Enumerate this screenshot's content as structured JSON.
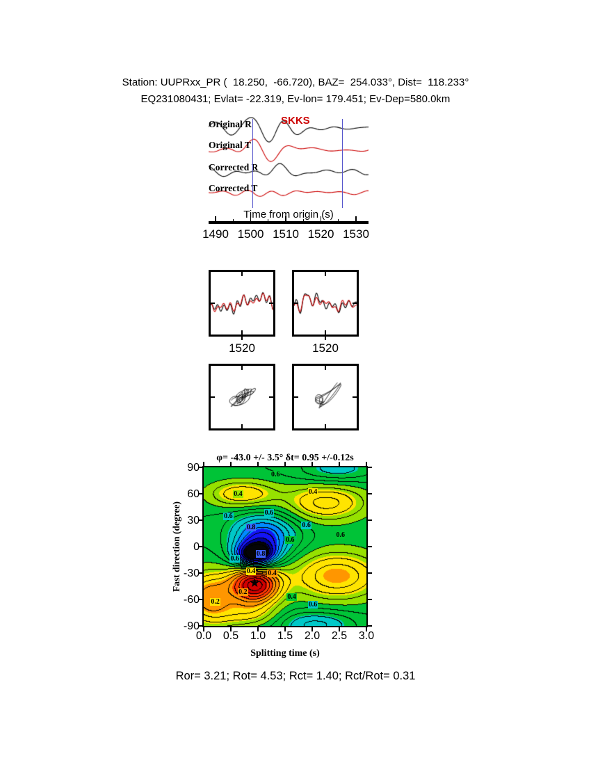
{
  "header": {
    "line1": "Station: UUPRxx_PR (  18.250,  -66.720), BAZ=  254.033°, Dist=  118.233°",
    "line2": "EQ231080431; Evlat= -22.319, Ev-lon= 179.451; Ev-Dep=580.0km"
  },
  "seismograms": {
    "phase_label": "SKKS",
    "trace_labels": [
      "Original R",
      "Original T",
      "Corrected R",
      "Corrected T"
    ],
    "axis_label": "Time from origin (s)",
    "xticks": [
      "1490",
      "1500",
      "1510",
      "1520",
      "1530"
    ]
  },
  "window_panels": {
    "xtick": "1520"
  },
  "splitting": {
    "title": "φ= -43.0 +/- 3.5° δt= 0.95 +/-0.12s",
    "ylabel": "Fast direction (degree)",
    "xlabel": "Splitting time (s)",
    "yticks": [
      "90",
      "60",
      "30",
      "0",
      "-30",
      "-60",
      "-90"
    ],
    "xticks": [
      "0.0",
      "0.5",
      "1.0",
      "1.5",
      "2.0",
      "2.5",
      "3.0"
    ]
  },
  "footer": {
    "stats": "Ror= 3.21; Rot= 4.53; Rct= 1.40; Rct/Rot= 0.31"
  },
  "chart_data": [
    {
      "type": "line",
      "panel": "seismograms",
      "series": [
        {
          "name": "Original R",
          "color": "#000000"
        },
        {
          "name": "Original T",
          "color": "#cc0000"
        },
        {
          "name": "Corrected R",
          "color": "#000000"
        },
        {
          "name": "Corrected T",
          "color": "#cc0000"
        }
      ],
      "xlabel": "Time from origin (s)",
      "xlim": [
        1488,
        1534
      ],
      "xticks": [
        1490,
        1500,
        1510,
        1520,
        1530
      ],
      "phase_pick": "SKKS",
      "window_s": [
        1500.5,
        1526.0
      ],
      "window_color": "#5555cc"
    },
    {
      "type": "line",
      "panel": "windowed-waveforms",
      "boxes": 2,
      "xticks": [
        1520
      ],
      "series_colors": [
        "#000000",
        "#cc0000"
      ]
    },
    {
      "type": "line",
      "panel": "particle-motion",
      "boxes": 2,
      "series_colors": [
        "#000000"
      ]
    },
    {
      "type": "heatmap",
      "panel": "splitting-grid-search",
      "title": "φ= -43.0 +/- 3.5° δt= 0.95 +/-0.12s",
      "xlabel": "Splitting time (s)",
      "ylabel": "Fast direction (degree)",
      "xlim": [
        0,
        3
      ],
      "ylim": [
        -90,
        90
      ],
      "xticks": [
        0.0,
        0.5,
        1.0,
        1.5,
        2.0,
        2.5,
        3.0
      ],
      "yticks": [
        90,
        60,
        30,
        0,
        -30,
        -60,
        -90
      ],
      "grid": false,
      "contour_levels": [
        0.2,
        0.4,
        0.6,
        0.8
      ],
      "best_fit": {
        "phi_deg": -43.0,
        "phi_err_deg": 3.5,
        "dt_s": 0.95,
        "dt_err_s": 0.12
      },
      "star": {
        "x": 0.95,
        "y": -43
      },
      "contour_labels": [
        {
          "text": "0.6",
          "xf": 0.44,
          "yf": 0.05,
          "bg": "#00c832"
        },
        {
          "text": "0.4",
          "xf": 0.21,
          "yf": 0.17,
          "bg": "#9be600"
        },
        {
          "text": "0.4",
          "xf": 0.67,
          "yf": 0.16,
          "bg": "#ffe400"
        },
        {
          "text": "0.6",
          "xf": 0.15,
          "yf": 0.31,
          "bg": "#00c8c8"
        },
        {
          "text": "0.6",
          "xf": 0.4,
          "yf": 0.29,
          "bg": "#00c8c8"
        },
        {
          "text": "0.8",
          "xf": 0.29,
          "yf": 0.38,
          "bg": "#3c64ff"
        },
        {
          "text": "0.6",
          "xf": 0.63,
          "yf": 0.37,
          "bg": "#00c8c8"
        },
        {
          "text": "0.6",
          "xf": 0.84,
          "yf": 0.43,
          "bg": "#00c832"
        },
        {
          "text": "0.8",
          "xf": 0.35,
          "yf": 0.55,
          "bg": "#3c64ff"
        },
        {
          "text": "0.6",
          "xf": 0.19,
          "yf": 0.58,
          "bg": "#00c8c8"
        },
        {
          "text": "0.6",
          "xf": 0.53,
          "yf": 0.46,
          "bg": "#00c832"
        },
        {
          "text": "0.4",
          "xf": 0.29,
          "yf": 0.66,
          "bg": "#ffe400"
        },
        {
          "text": "0.4",
          "xf": 0.42,
          "yf": 0.67,
          "bg": "#ff9600"
        },
        {
          "text": "0.2",
          "xf": 0.24,
          "yf": 0.79,
          "bg": "#ff9600"
        },
        {
          "text": "0.4",
          "xf": 0.54,
          "yf": 0.82,
          "bg": "#00c832"
        },
        {
          "text": "0.6",
          "xf": 0.67,
          "yf": 0.87,
          "bg": "#00c8c8"
        },
        {
          "text": "0.2",
          "xf": 0.07,
          "yf": 0.85,
          "bg": "#ffe400"
        }
      ]
    },
    {
      "type": "table",
      "panel": "quality-stats",
      "values": {
        "Ror": 3.21,
        "Rot": 4.53,
        "Rct": 1.4,
        "Rct/Rot": 0.31
      }
    }
  ]
}
